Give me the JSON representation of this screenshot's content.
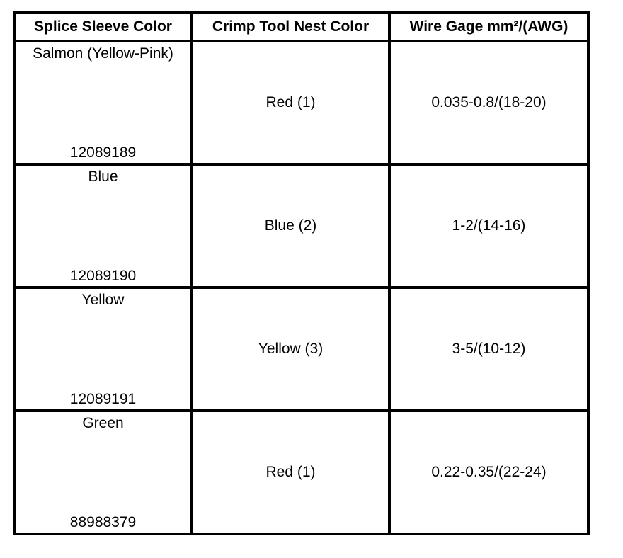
{
  "headers": [
    "Splice Sleeve Color",
    "Crimp Tool Nest Color",
    "Wire Gage mm²/(AWG)"
  ],
  "rows": [
    {
      "sleeve_color": "Salmon (Yellow-Pink)",
      "part_number": "12089189",
      "nest_color": "Red (1)",
      "wire_gage": "0.035-0.8/(18-20)"
    },
    {
      "sleeve_color": "Blue",
      "part_number": "12089190",
      "nest_color": "Blue (2)",
      "wire_gage": "1-2/(14-16)"
    },
    {
      "sleeve_color": "Yellow",
      "part_number": "12089191",
      "nest_color": "Yellow (3)",
      "wire_gage": "3-5/(10-12)"
    },
    {
      "sleeve_color": "Green",
      "part_number": "88988379",
      "nest_color": "Red (1)",
      "wire_gage": "0.22-0.35/(22-24)"
    }
  ]
}
